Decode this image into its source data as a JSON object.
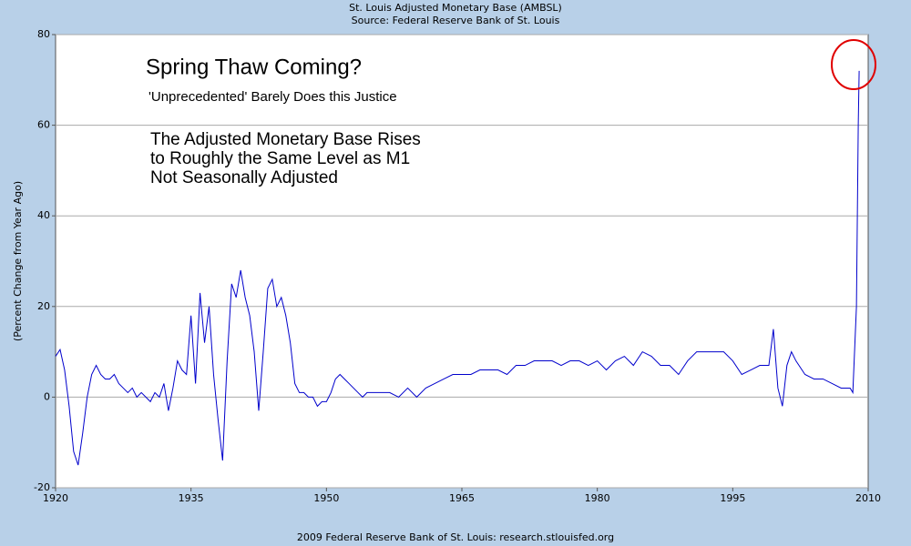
{
  "chart_data": {
    "type": "line",
    "title": "St. Louis Adjusted Monetary Base (AMBSL)",
    "subtitle": "Source: Federal Reserve Bank of St. Louis",
    "y_label": "(Percent Change from Year Ago)",
    "footer": "2009 Federal Reserve Bank of St. Louis: research.stlouisfed.org",
    "annotations": [
      "Spring Thaw Coming?",
      "'Unprecedented' Barely Does this Justice",
      "The Adjusted Monetary Base Rises",
      "to Roughly the Same Level as M1",
      "Not Seasonally Adjusted"
    ],
    "color": "#0000cc",
    "x": [
      1920,
      1920.5,
      1921,
      1921.5,
      1922,
      1922.5,
      1923,
      1923.5,
      1924,
      1924.5,
      1925,
      1925.5,
      1926,
      1926.5,
      1927,
      1927.5,
      1928,
      1928.5,
      1929,
      1929.5,
      1930,
      1930.5,
      1931,
      1931.5,
      1932,
      1932.5,
      1933,
      1933.5,
      1934,
      1934.5,
      1935,
      1935.5,
      1936,
      1936.5,
      1937,
      1937.5,
      1938,
      1938.5,
      1939,
      1939.5,
      1940,
      1940.5,
      1941,
      1941.5,
      1942,
      1942.5,
      1943,
      1943.5,
      1944,
      1944.5,
      1945,
      1945.5,
      1946,
      1946.5,
      1947,
      1947.5,
      1948,
      1948.5,
      1949,
      1949.5,
      1950,
      1950.5,
      1951,
      1951.5,
      1952,
      1952.5,
      1953,
      1953.5,
      1954,
      1954.5,
      1955,
      1956,
      1957,
      1958,
      1959,
      1960,
      1961,
      1962,
      1963,
      1964,
      1965,
      1966,
      1967,
      1968,
      1969,
      1970,
      1971,
      1972,
      1973,
      1974,
      1975,
      1976,
      1977,
      1978,
      1979,
      1980,
      1981,
      1982,
      1983,
      1984,
      1985,
      1986,
      1987,
      1988,
      1989,
      1990,
      1991,
      1992,
      1993,
      1994,
      1995,
      1996,
      1997,
      1998,
      1999,
      1999.5,
      2000,
      2000.5,
      2001,
      2001.5,
      2002,
      2003,
      2004,
      2005,
      2006,
      2007,
      2008,
      2008.3,
      2008.7,
      2008.9,
      2009
    ],
    "values": [
      9,
      10.5,
      6,
      -2,
      -12,
      -15,
      -8,
      0,
      5,
      7,
      5,
      4,
      4,
      5,
      3,
      2,
      1,
      2,
      0,
      1,
      0,
      -1,
      1,
      0,
      3,
      -3,
      2,
      8,
      6,
      5,
      18,
      3,
      23,
      12,
      20,
      5,
      -5,
      -14,
      8,
      25,
      22,
      28,
      22,
      18,
      10,
      -3,
      10,
      24,
      26,
      20,
      22,
      18,
      12,
      3,
      1,
      1,
      0,
      0,
      -2,
      -1,
      -1,
      1,
      4,
      5,
      4,
      3,
      2,
      1,
      0,
      1,
      1,
      1,
      1,
      0,
      2,
      0,
      2,
      3,
      4,
      5,
      5,
      5,
      6,
      6,
      6,
      5,
      7,
      7,
      8,
      8,
      8,
      7,
      8,
      8,
      7,
      8,
      6,
      8,
      9,
      7,
      10,
      9,
      7,
      7,
      5,
      8,
      10,
      10,
      10,
      10,
      8,
      5,
      6,
      7,
      7,
      15,
      2,
      -2,
      7,
      10,
      8,
      5,
      4,
      4,
      3,
      2,
      2,
      1,
      20,
      60,
      72
    ],
    "xlim": [
      1920,
      2010
    ],
    "xticks": [
      1920,
      1935,
      1950,
      1965,
      1980,
      1995,
      2010
    ],
    "ylim": [
      -20,
      80
    ],
    "yticks": [
      -20,
      0,
      20,
      40,
      60,
      80
    ],
    "grid": true
  }
}
